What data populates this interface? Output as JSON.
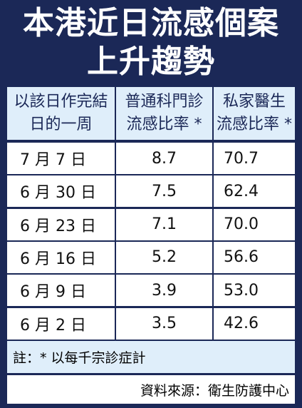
{
  "title": {
    "lines": [
      "本港近日流感個案",
      "上升趨勢"
    ]
  },
  "table": {
    "header": [
      [
        "以該日作完結",
        "日的一周"
      ],
      [
        "普通科門診",
        "流感比率 *"
      ],
      [
        "私家醫生",
        "流感比率 *"
      ]
    ],
    "rows": [
      [
        "7 月 7 日",
        "8.7",
        "70.7"
      ],
      [
        "6 月 30 日",
        "7.5",
        "62.4"
      ],
      [
        "6 月 23 日",
        "7.1",
        "70.0"
      ],
      [
        "6 月 16 日",
        "5.2",
        "56.6"
      ],
      [
        "6 月 9 日",
        "3.9",
        "53.0"
      ],
      [
        "6 月 2 日",
        "3.5",
        "42.6"
      ]
    ]
  },
  "note": "註：* 以每千宗診症計",
  "source": "資料來源：衛生防護中心"
}
